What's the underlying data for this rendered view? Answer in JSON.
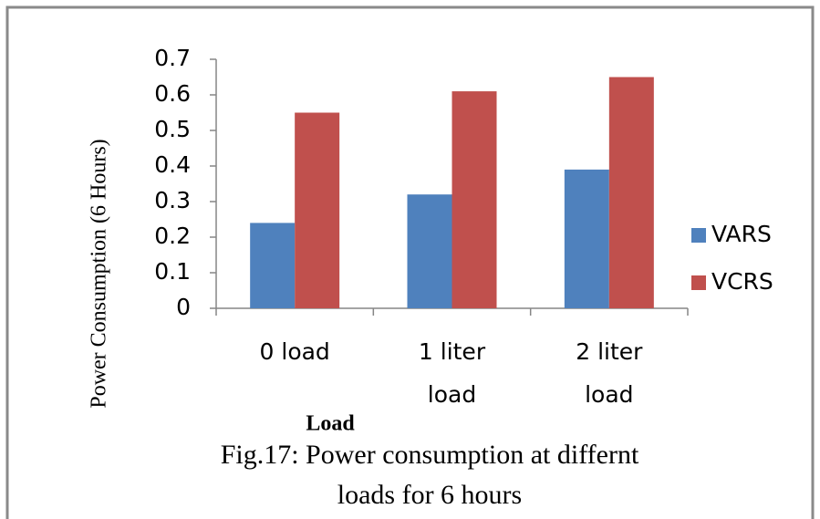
{
  "chart_data": {
    "type": "bar",
    "categories": [
      "0 load",
      "1 liter load",
      "2 liter load"
    ],
    "series": [
      {
        "name": "VARS",
        "color": "#4f81bd",
        "values": [
          0.24,
          0.32,
          0.39
        ]
      },
      {
        "name": "VCRS",
        "color": "#c0504d",
        "values": [
          0.55,
          0.61,
          0.65
        ]
      }
    ],
    "ylim": [
      0,
      0.7
    ],
    "yticks": [
      0,
      0.1,
      0.2,
      0.3,
      0.4,
      0.5,
      0.6,
      0.7
    ],
    "grid": false,
    "legend": "right",
    "x_label": "Load",
    "y_label": "Power Consumption (6 Hours)",
    "caption": [
      "Fig.17: Power consumption at differnt",
      "loads for 6 hours"
    ]
  }
}
